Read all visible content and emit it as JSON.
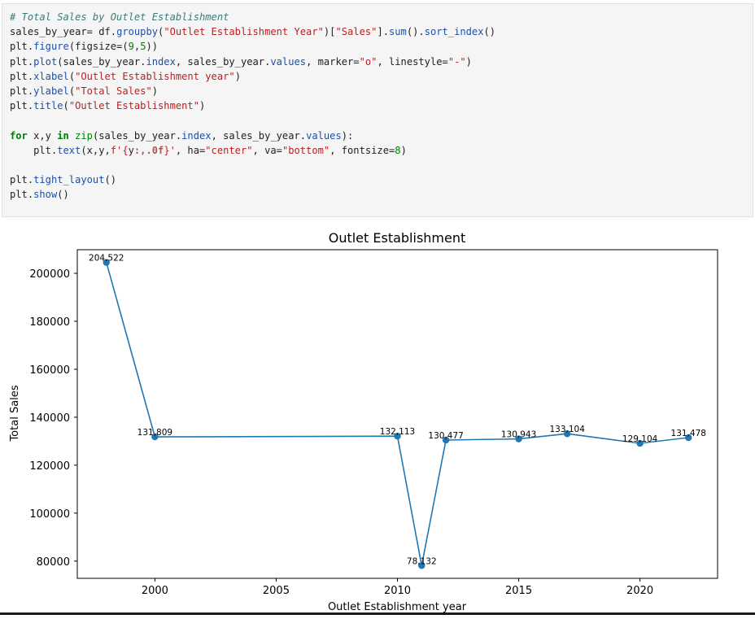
{
  "code": {
    "lines": [
      "# Total Sales by Outlet Establishment",
      "sales_by_year= df.groupby(\"Outlet Establishment Year\")[\"Sales\"].sum().sort_index()",
      "plt.figure(figsize=(9,5))",
      "plt.plot(sales_by_year.index, sales_by_year.values, marker=\"o\", linestyle=\"-\")",
      "plt.xlabel(\"Outlet Establishment year\")",
      "plt.ylabel(\"Total Sales\")",
      "plt.title(\"Outlet Establishment\")",
      "",
      "for x,y in zip(sales_by_year.index, sales_by_year.values):",
      "    plt.text(x,y,f'{y:,.0f}', ha=\"center\", va=\"bottom\", fontsize=8)",
      "",
      "plt.tight_layout()",
      "plt.show()"
    ]
  },
  "chart_data": {
    "type": "line",
    "title": "Outlet Establishment",
    "xlabel": "Outlet Establishment year",
    "ylabel": "Total Sales",
    "x": [
      1998,
      2000,
      2010,
      2011,
      2012,
      2015,
      2017,
      2020,
      2022
    ],
    "values": [
      204522,
      131809,
      132113,
      78132,
      130477,
      130943,
      133104,
      129104,
      131478
    ],
    "data_labels": [
      "204,522",
      "131,809",
      "132,113",
      "78,132",
      "130,477",
      "130,943",
      "133,104",
      "129,104",
      "131,478"
    ],
    "xlim": [
      1996.8,
      2023.2
    ],
    "ylim": [
      72811,
      209843
    ],
    "x_ticks": [
      2000,
      2005,
      2010,
      2015,
      2020
    ],
    "x_tick_labels": [
      "2000",
      "2005",
      "2010",
      "2015",
      "2020"
    ],
    "y_ticks": [
      80000,
      100000,
      120000,
      140000,
      160000,
      180000,
      200000
    ],
    "y_tick_labels": [
      "80000",
      "100000",
      "120000",
      "140000",
      "160000",
      "180000",
      "200000"
    ],
    "grid": false,
    "line_color": "#1f77b4",
    "marker": "circle"
  }
}
